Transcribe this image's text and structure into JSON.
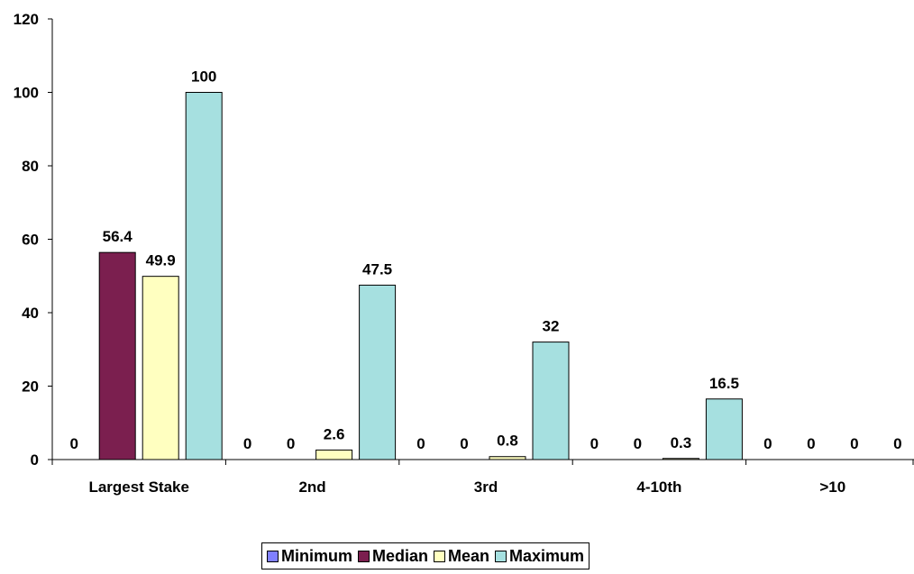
{
  "chart_data": {
    "type": "bar",
    "title": "",
    "xlabel": "",
    "ylabel": "",
    "ylim": [
      0,
      120
    ],
    "yticks": [
      0,
      20,
      40,
      60,
      80,
      100,
      120
    ],
    "ytick_labels": [
      "0",
      "20",
      "40",
      "60",
      "80",
      "100",
      "120"
    ],
    "categories": [
      "Largest Stake",
      "2nd",
      "3rd",
      "4-10th",
      ">10"
    ],
    "series": [
      {
        "name": "Minimum",
        "color": "#8080ff",
        "values": [
          0,
          0,
          0,
          0,
          0
        ],
        "labels": [
          "0",
          "0",
          "0",
          "0",
          "0"
        ]
      },
      {
        "name": "Median",
        "color": "#7b1f4f",
        "values": [
          56.4,
          0,
          0,
          0,
          0
        ],
        "labels": [
          "56.4",
          "0",
          "0",
          "0",
          "0"
        ]
      },
      {
        "name": "Mean",
        "color": "#ffffc0",
        "values": [
          49.9,
          2.6,
          0.8,
          0.3,
          0
        ],
        "labels": [
          "49.9",
          "2.6",
          "0.8",
          "0.3",
          "0"
        ]
      },
      {
        "name": "Maximum",
        "color": "#a6e0e0",
        "values": [
          100,
          47.5,
          32,
          16.5,
          0
        ],
        "labels": [
          "100",
          "47.5",
          "32",
          "16.5",
          "0"
        ]
      }
    ],
    "grid": false,
    "legend_position": "bottom"
  }
}
